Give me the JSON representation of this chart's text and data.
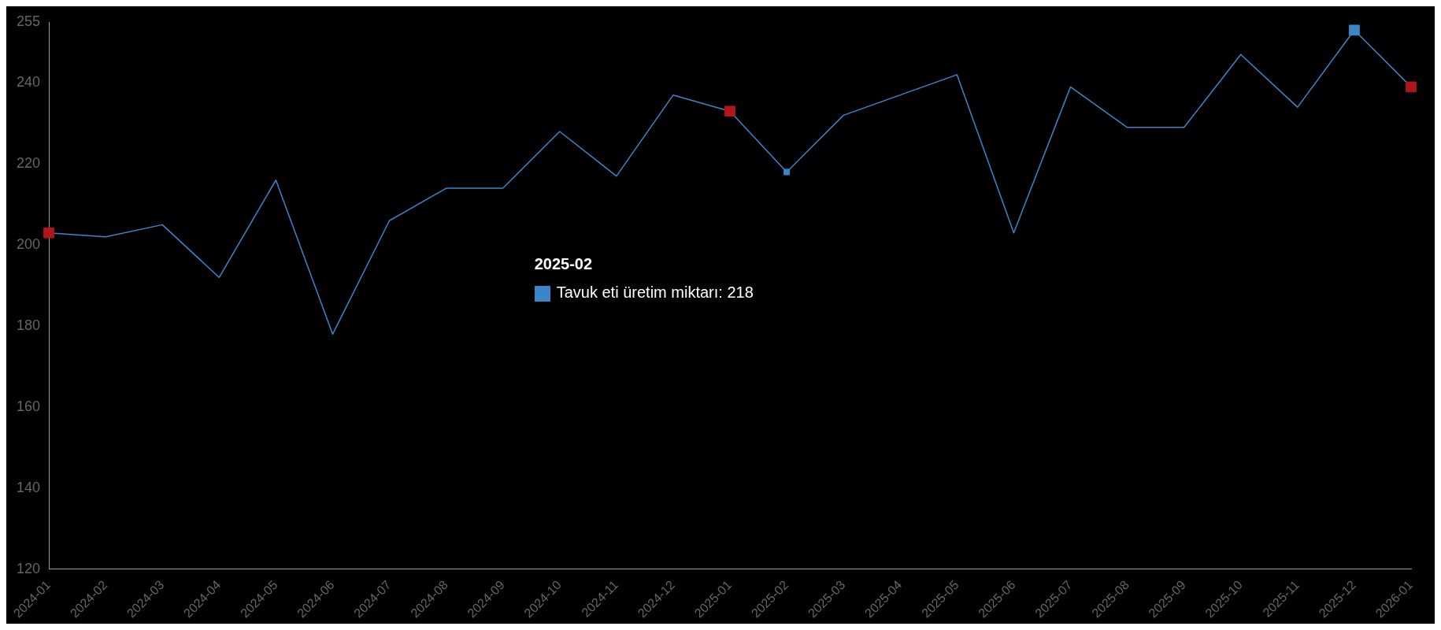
{
  "chart_data": {
    "type": "line",
    "categories": [
      "2024-01",
      "2024-02",
      "2024-03",
      "2024-04",
      "2024-05",
      "2024-06",
      "2024-07",
      "2024-08",
      "2024-09",
      "2024-10",
      "2024-11",
      "2024-12",
      "2025-01",
      "2025-02",
      "2025-03",
      "2025-04",
      "2025-05",
      "2025-06",
      "2025-07",
      "2025-08",
      "2025-09",
      "2025-10",
      "2025-11",
      "2025-12",
      "2026-01"
    ],
    "series": [
      {
        "type": "line",
        "color": "#3a86c8",
        "marker": "none",
        "values": [
          203,
          202,
          205,
          192,
          216,
          178,
          206,
          214,
          214,
          228,
          217,
          237,
          233,
          218,
          232,
          237,
          242,
          203,
          239,
          229,
          229,
          247,
          234,
          253,
          239
        ]
      },
      {
        "type": "scatter",
        "color": "#b0161c",
        "marker": "square",
        "values": [
          203,
          null,
          null,
          null,
          null,
          null,
          null,
          null,
          null,
          null,
          null,
          null,
          233,
          null,
          null,
          null,
          null,
          null,
          null,
          null,
          null,
          null,
          null,
          null,
          239
        ]
      },
      {
        "type": "scatter",
        "color": "#3a86c8",
        "marker": "square",
        "values": [
          null,
          null,
          null,
          null,
          null,
          null,
          null,
          null,
          null,
          null,
          null,
          null,
          null,
          218,
          null,
          null,
          null,
          null,
          null,
          null,
          null,
          null,
          null,
          253,
          null
        ]
      }
    ],
    "annotations": [
      "2025-02",
      "Tavuk eti üretim miktarı: 218"
    ],
    "ylim": [
      120,
      255
    ],
    "yticks": [
      120,
      140,
      160,
      180,
      200,
      220,
      240,
      255
    ],
    "grid": false,
    "legend": false
  }
}
